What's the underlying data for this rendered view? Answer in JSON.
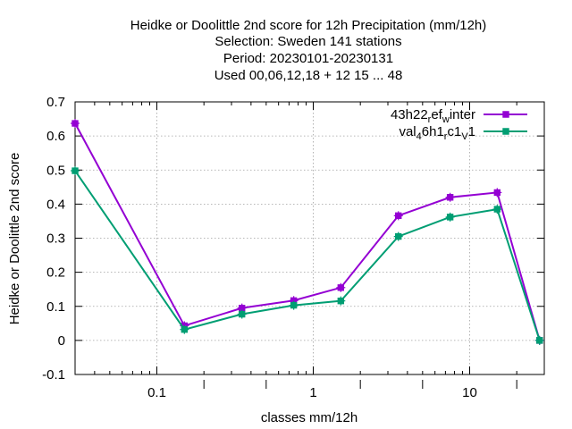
{
  "chart_data": {
    "type": "line",
    "title_lines": [
      "Heidke or Doolittle 2nd score  for 12h Precipitation (mm/12h)",
      "Selection: Sweden    141 stations",
      "Period: 20230101-20230131",
      "Used  00,06,12,18  + 12 15 ... 48"
    ],
    "xlabel": "classes mm/12h",
    "ylabel": "Heidke or Doolittle 2nd score",
    "xscale": "log",
    "xlim": [
      0.03,
      30
    ],
    "ylim": [
      -0.1,
      0.7
    ],
    "x_ticks": [
      {
        "value": 0.1,
        "label": "0.1"
      },
      {
        "value": 1,
        "label": "1"
      },
      {
        "value": 10,
        "label": "10"
      }
    ],
    "y_ticks": [
      {
        "value": -0.1,
        "label": "-0.1"
      },
      {
        "value": 0,
        "label": "0"
      },
      {
        "value": 0.1,
        "label": "0.1"
      },
      {
        "value": 0.2,
        "label": "0.2"
      },
      {
        "value": 0.3,
        "label": "0.3"
      },
      {
        "value": 0.4,
        "label": "0.4"
      },
      {
        "value": 0.5,
        "label": "0.5"
      },
      {
        "value": 0.6,
        "label": "0.6"
      },
      {
        "value": 0.7,
        "label": "0.7"
      }
    ],
    "grid": true,
    "legend_position": "top-right",
    "series": [
      {
        "name": "43h22",
        "name_sub": "r",
        "name_mid": "ef",
        "name_sub2": "w",
        "name_end": "inter",
        "color": "#9400d3",
        "x": [
          0.03,
          0.15,
          0.35,
          0.75,
          1.5,
          3.5,
          7.5,
          15,
          28
        ],
        "values": [
          0.637,
          0.043,
          0.095,
          0.117,
          0.155,
          0.366,
          0.42,
          0.434,
          0.0
        ]
      },
      {
        "name": "val",
        "name_sub": "4",
        "name_mid": "6h1",
        "name_sub2": "r",
        "name_mid2": "c1",
        "name_sub3": "V",
        "name_end": "1",
        "color": "#009e73",
        "x": [
          0.03,
          0.15,
          0.35,
          0.75,
          1.5,
          3.5,
          7.5,
          15,
          28
        ],
        "values": [
          0.498,
          0.032,
          0.077,
          0.103,
          0.116,
          0.305,
          0.362,
          0.385,
          0.0
        ]
      }
    ]
  }
}
